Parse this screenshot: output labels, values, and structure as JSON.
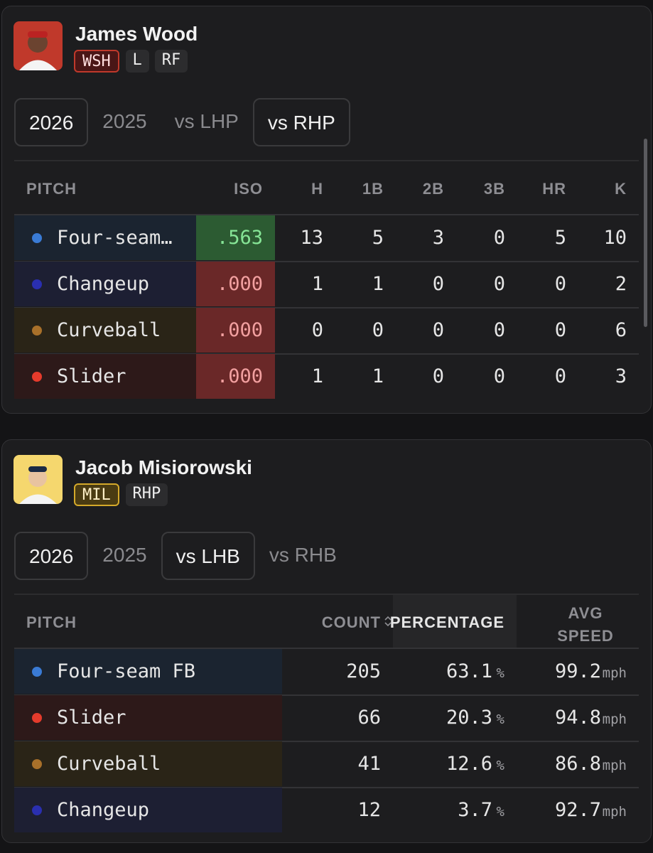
{
  "cards": [
    {
      "player": {
        "name": "James Wood",
        "team": "WSH",
        "badges": [
          "L",
          "RF"
        ]
      },
      "tabs": [
        "2026",
        "2025",
        "vs LHP",
        "vs RHP"
      ],
      "table": {
        "headers": [
          "PITCH",
          "ISO",
          "H",
          "1B",
          "2B",
          "3B",
          "HR",
          "K"
        ],
        "rows": [
          [
            "Four-seam…",
            ".563",
            "13",
            "5",
            "3",
            "0",
            "5",
            "10"
          ],
          [
            "Changeup",
            ".000",
            "1",
            "1",
            "0",
            "0",
            "0",
            "2"
          ],
          [
            "Curveball",
            ".000",
            "0",
            "0",
            "0",
            "0",
            "0",
            "6"
          ],
          [
            "Slider",
            ".000",
            "1",
            "1",
            "0",
            "0",
            "0",
            "3"
          ]
        ]
      }
    },
    {
      "player": {
        "name": "Jacob Misiorowski",
        "team": "MIL",
        "badges": [
          "RHP"
        ]
      },
      "tabs": [
        "2026",
        "2025",
        "vs LHB",
        "vs RHB"
      ],
      "table": {
        "headers": [
          "PITCH",
          "COUNT",
          "PERCENTAGE",
          "AVG SPEED"
        ],
        "percent_unit": "%",
        "speed_unit": "mph",
        "rows": [
          [
            "Four-seam FB",
            "205",
            "63.1",
            "99.2"
          ],
          [
            "Slider",
            "66",
            "20.3",
            "94.8"
          ],
          [
            "Curveball",
            "41",
            "12.6",
            "86.8"
          ],
          [
            "Changeup",
            "12",
            "3.7",
            "92.7"
          ]
        ]
      }
    }
  ]
}
